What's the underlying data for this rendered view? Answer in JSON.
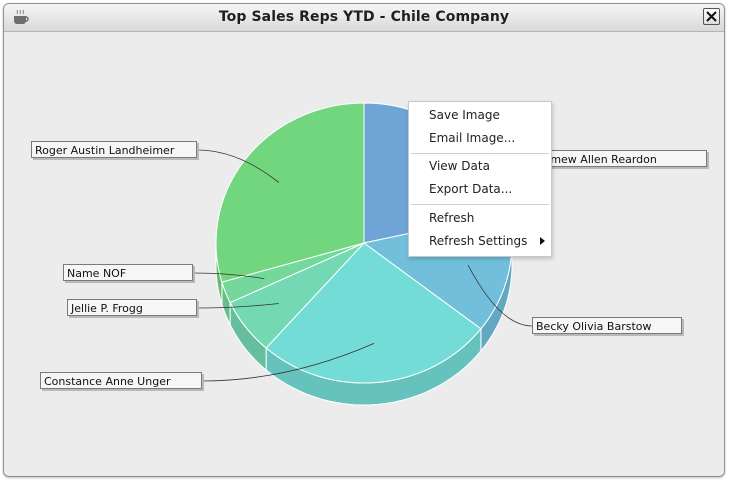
{
  "window": {
    "title": "Top Sales Reps YTD - Chile Company"
  },
  "chart_data": {
    "type": "pie",
    "title": "",
    "slices": [
      {
        "label": "Bartholomew Allen Reardon",
        "display_label": "rtholomew Allen Reardon",
        "value": 21.5,
        "color": "#6fa4d6"
      },
      {
        "label": "Becky Olivia Barstow",
        "display_label": "Becky Olivia Barstow",
        "value": 14,
        "color": "#71bfdb"
      },
      {
        "label": "Constance Anne Unger",
        "display_label": "Constance Anne Unger",
        "value": 26,
        "color": "#73dcd6"
      },
      {
        "label": "Jellie P. Frogg",
        "display_label": "Jellie P. Frogg",
        "value": 6.5,
        "color": "#74d8b4"
      },
      {
        "label": "Name NOF",
        "display_label": "Name NOF",
        "value": 2.5,
        "color": "#74d89c"
      },
      {
        "label": "Roger Austin Landheimer",
        "display_label": "Roger Austin Landheimer",
        "value": 29.5,
        "color": "#72d67e"
      }
    ]
  },
  "context_menu": {
    "items": [
      {
        "label": "Save Image"
      },
      {
        "label": "Email Image..."
      },
      {
        "label": "View Data"
      },
      {
        "label": "Export Data..."
      },
      {
        "label": "Refresh"
      },
      {
        "label": "Refresh Settings",
        "has_submenu": true
      }
    ]
  },
  "icons": {
    "app": "app-icon",
    "close": "close-icon",
    "submenu": "submenu-arrow-icon"
  }
}
